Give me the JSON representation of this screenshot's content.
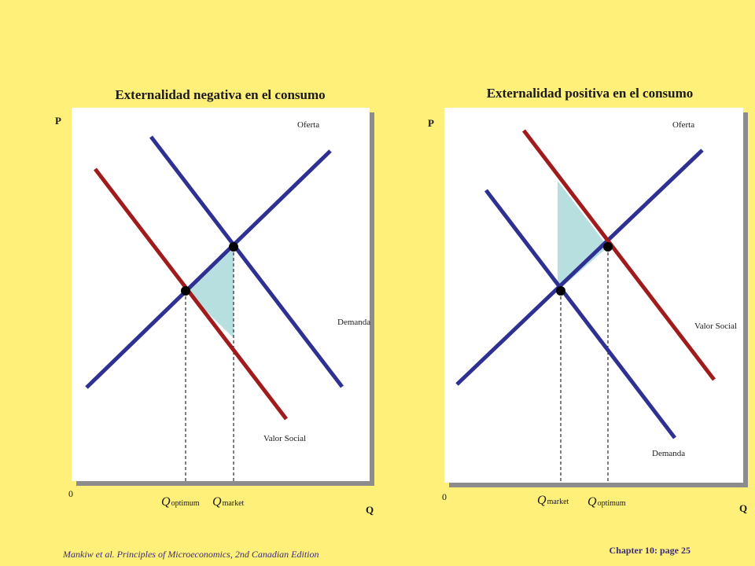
{
  "colors": {
    "background": "#FFF07A",
    "panel": "#FFFFFF",
    "shadow": "#8C8C8C",
    "blue_curve": "#2E3192",
    "red_curve": "#A01C1C",
    "shade": "#B7DFE0"
  },
  "left_panel": {
    "title": "Externalidad negativa en el consumo",
    "p_label": "P",
    "q_label": "Q",
    "origin_label": "0",
    "supply_label": "Oferta",
    "demand_label": "Demanda",
    "social_label": "Valor Social",
    "q1_main": "Q",
    "q1_sub": "optimum",
    "q2_main": "Q",
    "q2_sub": "market"
  },
  "right_panel": {
    "title": "Externalidad positiva en el consumo",
    "p_label": "P",
    "q_label": "Q",
    "origin_label": "0",
    "supply_label": "Oferta",
    "social_label": "Valor Social",
    "demand_label": "Demanda",
    "q1_main": "Q",
    "q1_sub": "market",
    "q2_main": "Q",
    "q2_sub": "optimum"
  },
  "footer": {
    "citation": "Mankiw et al. Principles of Microeconomics, 2nd Canadian Edition",
    "chapter": "Chapter 10: page 25"
  }
}
